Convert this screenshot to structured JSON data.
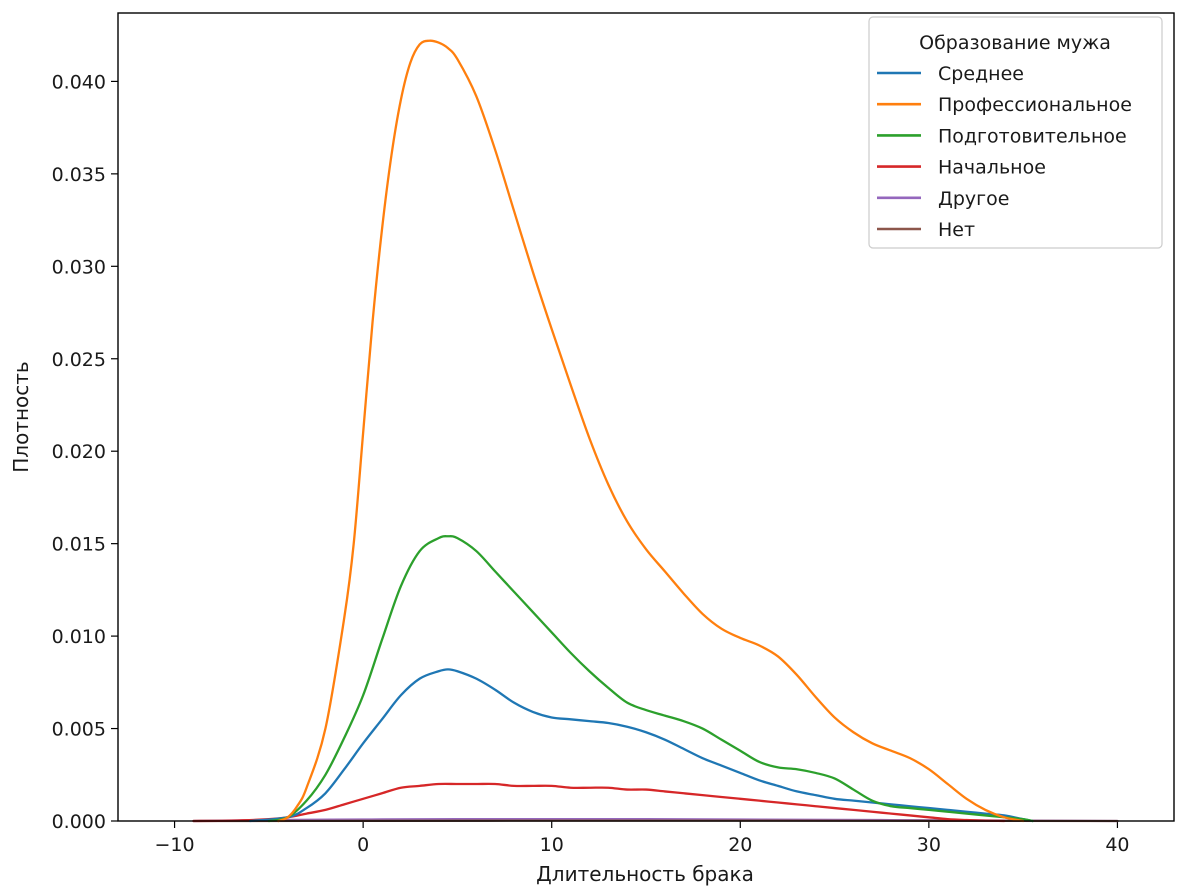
{
  "chart_data": {
    "type": "line",
    "xlabel": "Длительность брака",
    "ylabel": "Плотность",
    "xlim": [
      -13,
      43
    ],
    "ylim": [
      0,
      0.0437
    ],
    "x_ticks": [
      -10,
      0,
      10,
      20,
      30,
      40
    ],
    "x_tick_labels": [
      "−10",
      "0",
      "10",
      "20",
      "30",
      "40"
    ],
    "y_ticks": [
      0,
      0.005,
      0.01,
      0.015,
      0.02,
      0.025,
      0.03,
      0.035,
      0.04
    ],
    "y_tick_labels": [
      "0.000",
      "0.005",
      "0.010",
      "0.015",
      "0.020",
      "0.025",
      "0.030",
      "0.035",
      "0.040"
    ],
    "grid": false,
    "legend": {
      "title": "Образование мужа",
      "position": "top-right"
    },
    "series": [
      {
        "name": "Среднее",
        "color": "#1f77b4",
        "x": [
          -6,
          -4,
          -3,
          -2,
          -1,
          0,
          1,
          2,
          3,
          4,
          4.5,
          5,
          6,
          7,
          8,
          9,
          10,
          11,
          12,
          13,
          14,
          15,
          16,
          17,
          18,
          19,
          20,
          21,
          22,
          23,
          24,
          25,
          26,
          27,
          28,
          29,
          30,
          31,
          32,
          33,
          34,
          35,
          35.5
        ],
        "y": [
          0,
          0.0002,
          0.0007,
          0.0015,
          0.0028,
          0.0042,
          0.0055,
          0.0068,
          0.0077,
          0.0081,
          0.0082,
          0.0081,
          0.0077,
          0.0071,
          0.0064,
          0.0059,
          0.0056,
          0.0055,
          0.0054,
          0.0053,
          0.0051,
          0.0048,
          0.0044,
          0.0039,
          0.0034,
          0.003,
          0.0026,
          0.0022,
          0.0019,
          0.0016,
          0.0014,
          0.0012,
          0.0011,
          0.001,
          0.0009,
          0.0008,
          0.0007,
          0.0006,
          0.0005,
          0.0004,
          0.0003,
          0.0001,
          0
        ]
      },
      {
        "name": "Профессиональное",
        "color": "#ff7f0e",
        "x": [
          -4.5,
          -4,
          -3.5,
          -3,
          -2,
          -1,
          -0.5,
          0,
          0.5,
          1,
          1.5,
          2,
          2.5,
          3,
          3.5,
          4,
          4.5,
          5,
          6,
          7,
          8,
          9,
          10,
          11,
          12,
          13,
          14,
          15,
          16,
          17,
          18,
          19,
          20,
          21,
          22,
          23,
          24,
          25,
          26,
          27,
          28,
          29,
          30,
          31,
          32,
          33,
          34,
          35
        ],
        "y": [
          0,
          0.0002,
          0.0008,
          0.0018,
          0.005,
          0.011,
          0.015,
          0.021,
          0.027,
          0.032,
          0.036,
          0.039,
          0.041,
          0.042,
          0.0422,
          0.0421,
          0.0418,
          0.0412,
          0.0392,
          0.0363,
          0.033,
          0.0297,
          0.0266,
          0.0236,
          0.0207,
          0.0182,
          0.0162,
          0.0147,
          0.0135,
          0.0123,
          0.0112,
          0.0104,
          0.0099,
          0.0095,
          0.0089,
          0.0079,
          0.0067,
          0.0056,
          0.0048,
          0.0042,
          0.0038,
          0.0034,
          0.0028,
          0.002,
          0.0012,
          0.0006,
          0.0002,
          0
        ]
      },
      {
        "name": "Подготовительное",
        "color": "#2ca02c",
        "x": [
          -5,
          -4,
          -3,
          -2,
          -1,
          0,
          1,
          2,
          3,
          4,
          4.5,
          5,
          6,
          7,
          8,
          9,
          10,
          11,
          12,
          13,
          14,
          15,
          16,
          17,
          18,
          19,
          20,
          21,
          22,
          23,
          24,
          25,
          26,
          27,
          28,
          29,
          30,
          31,
          32,
          33,
          34,
          35,
          35.5
        ],
        "y": [
          0,
          0.0002,
          0.0011,
          0.0025,
          0.0045,
          0.0068,
          0.0098,
          0.0127,
          0.0146,
          0.0153,
          0.0154,
          0.0153,
          0.0146,
          0.0135,
          0.0124,
          0.0113,
          0.0102,
          0.0091,
          0.0081,
          0.0072,
          0.0064,
          0.006,
          0.0057,
          0.0054,
          0.005,
          0.0044,
          0.0038,
          0.0032,
          0.0029,
          0.0028,
          0.0026,
          0.0023,
          0.0017,
          0.0011,
          0.0008,
          0.0007,
          0.0006,
          0.0005,
          0.0004,
          0.0003,
          0.0002,
          0.0001,
          0
        ]
      },
      {
        "name": "Начальное",
        "color": "#d62728",
        "x": [
          -9,
          -7,
          -5,
          -4,
          -3,
          -2,
          -1,
          0,
          1,
          2,
          3,
          4,
          5,
          6,
          7,
          8,
          9,
          10,
          11,
          12,
          13,
          14,
          15,
          16,
          17,
          18,
          19,
          20,
          21,
          22,
          23,
          24,
          25,
          26,
          27,
          28,
          29,
          30,
          31,
          32,
          33,
          34
        ],
        "y": [
          0,
          2e-05,
          0.0001,
          0.0002,
          0.0004,
          0.0006,
          0.0009,
          0.0012,
          0.0015,
          0.0018,
          0.0019,
          0.002,
          0.002,
          0.002,
          0.002,
          0.0019,
          0.0019,
          0.0019,
          0.0018,
          0.0018,
          0.0018,
          0.0017,
          0.0017,
          0.0016,
          0.0015,
          0.0014,
          0.0013,
          0.0012,
          0.0011,
          0.001,
          0.0009,
          0.0008,
          0.0007,
          0.0006,
          0.0005,
          0.0004,
          0.0003,
          0.0002,
          0.0001,
          5e-05,
          2e-05,
          0
        ]
      },
      {
        "name": "Другое",
        "color": "#9467bd",
        "x": [
          -9,
          -5,
          0,
          5,
          10,
          15,
          20,
          25,
          30,
          35,
          40
        ],
        "y": [
          0,
          5e-05,
          8e-05,
          0.0001,
          0.0001,
          0.0001,
          8e-05,
          6e-05,
          4e-05,
          2e-05,
          0
        ]
      },
      {
        "name": "Нет",
        "color": "#8c564b",
        "x": [
          -9,
          0,
          10,
          20,
          30,
          40
        ],
        "y": [
          0,
          1e-05,
          2e-05,
          2e-05,
          1e-05,
          0
        ]
      }
    ]
  }
}
